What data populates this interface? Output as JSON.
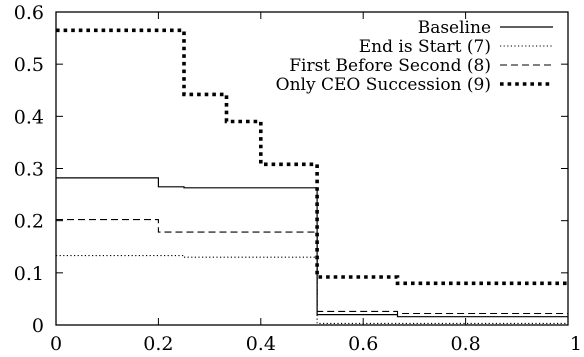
{
  "chart_data": {
    "type": "line",
    "xlim": [
      0,
      1
    ],
    "ylim": [
      0,
      0.6
    ],
    "x_ticks": [
      "0",
      "0.2",
      "0.4",
      "0.6",
      "0.8",
      "1"
    ],
    "x_tick_values": [
      0,
      0.2,
      0.4,
      0.6,
      0.8,
      1
    ],
    "y_ticks": [
      "0",
      "0.1",
      "0.2",
      "0.3",
      "0.4",
      "0.5",
      "0.6"
    ],
    "y_tick_values": [
      0,
      0.1,
      0.2,
      0.3,
      0.4,
      0.5,
      0.6
    ],
    "grid": false,
    "legend_position": "top-right",
    "series": [
      {
        "name": "Baseline",
        "style": "solid",
        "x": [
          0,
          0.2,
          0.2,
          0.25,
          0.25,
          0.5,
          0.51,
          0.51,
          0.667,
          0.667,
          1
        ],
        "y": [
          0.282,
          0.282,
          0.265,
          0.265,
          0.263,
          0.263,
          0.263,
          0.02,
          0.02,
          0.016,
          0.016
        ]
      },
      {
        "name": "End is Start (7)",
        "style": "dotted",
        "x": [
          0,
          0.25,
          0.25,
          0.5,
          0.51,
          0.51,
          1
        ],
        "y": [
          0.133,
          0.133,
          0.13,
          0.13,
          0.13,
          0.003,
          0.003
        ]
      },
      {
        "name": "First Before Second (8)",
        "style": "dashed",
        "x": [
          0,
          0.2,
          0.2,
          0.5,
          0.51,
          0.51,
          0.667,
          0.667,
          1
        ],
        "y": [
          0.202,
          0.202,
          0.178,
          0.178,
          0.178,
          0.026,
          0.026,
          0.022,
          0.022
        ]
      },
      {
        "name": "Only CEO Succession (9)",
        "style": "thick-dotted",
        "x": [
          0,
          0.25,
          0.25,
          0.333,
          0.333,
          0.4,
          0.4,
          0.5,
          0.51,
          0.51,
          0.667,
          0.667,
          1
        ],
        "y": [
          0.565,
          0.565,
          0.442,
          0.442,
          0.39,
          0.39,
          0.308,
          0.308,
          0.308,
          0.092,
          0.092,
          0.08,
          0.08
        ]
      }
    ]
  }
}
